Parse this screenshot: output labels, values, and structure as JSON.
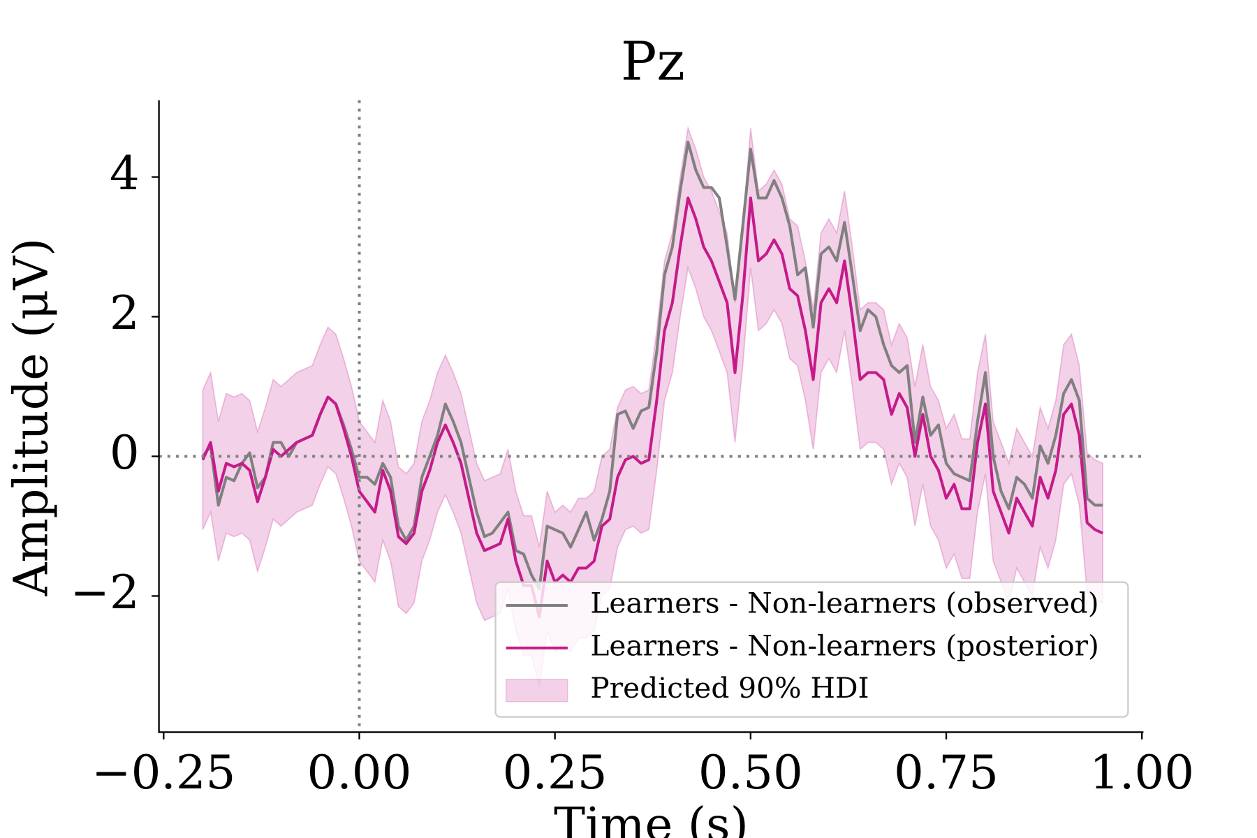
{
  "chart_data": {
    "type": "line",
    "title": "Pz",
    "x_label": "Time (s)",
    "y_label": "Amplitude (μV)",
    "x": [
      -0.2,
      -0.19,
      -0.18,
      -0.17,
      -0.16,
      -0.15,
      -0.14,
      -0.13,
      -0.12,
      -0.11,
      -0.1,
      -0.09,
      -0.08,
      -0.07,
      -0.06,
      -0.05,
      -0.04,
      -0.03,
      -0.02,
      -0.01,
      0,
      0.01,
      0.02,
      0.03,
      0.04,
      0.05,
      0.06,
      0.07,
      0.08,
      0.09,
      0.1,
      0.11,
      0.12,
      0.13,
      0.14,
      0.15,
      0.16,
      0.17,
      0.18,
      0.19,
      0.2,
      0.21,
      0.22,
      0.23,
      0.24,
      0.25,
      0.26,
      0.27,
      0.28,
      0.29,
      0.3,
      0.31,
      0.32,
      0.33,
      0.34,
      0.35,
      0.36,
      0.37,
      0.38,
      0.39,
      0.4,
      0.41,
      0.42,
      0.43,
      0.44,
      0.45,
      0.46,
      0.47,
      0.48,
      0.49,
      0.5,
      0.51,
      0.52,
      0.53,
      0.54,
      0.55,
      0.56,
      0.57,
      0.58,
      0.59,
      0.6,
      0.61,
      0.62,
      0.63,
      0.64,
      0.65,
      0.66,
      0.67,
      0.68,
      0.69,
      0.7,
      0.71,
      0.72,
      0.73,
      0.74,
      0.75,
      0.76,
      0.77,
      0.78,
      0.79,
      0.8,
      0.81,
      0.82,
      0.83,
      0.84,
      0.85,
      0.86,
      0.87,
      0.88,
      0.89,
      0.9,
      0.91,
      0.92,
      0.93,
      0.94,
      0.95
    ],
    "series": [
      {
        "name": "Learners - Non-learners (observed)",
        "color": "#808080",
        "values": [
          0.0,
          0.15,
          -0.7,
          -0.3,
          -0.35,
          -0.1,
          0.05,
          -0.45,
          -0.3,
          0.2,
          0.2,
          0.0,
          0.2,
          0.25,
          0.3,
          0.6,
          0.85,
          0.75,
          0.45,
          0.1,
          -0.3,
          -0.3,
          -0.4,
          -0.1,
          -0.3,
          -1.0,
          -1.2,
          -1.0,
          -0.3,
          0.0,
          0.3,
          0.75,
          0.5,
          0.2,
          -0.3,
          -0.8,
          -1.15,
          -1.1,
          -0.95,
          -0.8,
          -1.35,
          -1.4,
          -1.7,
          -1.9,
          -1.0,
          -1.05,
          -1.1,
          -1.3,
          -1.05,
          -0.8,
          -1.2,
          -0.9,
          -0.5,
          0.6,
          0.65,
          0.4,
          0.65,
          0.7,
          1.5,
          2.6,
          3.0,
          3.8,
          4.5,
          4.1,
          3.85,
          3.85,
          3.7,
          3.0,
          2.25,
          3.3,
          4.4,
          3.7,
          3.7,
          3.95,
          3.7,
          3.3,
          2.6,
          2.7,
          1.85,
          2.9,
          3.0,
          2.8,
          3.35,
          2.6,
          1.8,
          2.1,
          2.0,
          1.6,
          1.3,
          1.2,
          1.3,
          0.2,
          0.85,
          0.3,
          0.45,
          -0.1,
          -0.25,
          -0.3,
          -0.35,
          0.5,
          1.2,
          0.0,
          -0.5,
          -0.75,
          -0.3,
          -0.4,
          -0.6,
          0.15,
          -0.1,
          0.3,
          0.9,
          1.1,
          0.8,
          -0.6,
          -0.7,
          -0.7
        ]
      },
      {
        "name": "Learners - Non-learners (posterior)",
        "color": "#c51b8a",
        "values": [
          -0.05,
          0.2,
          -0.5,
          -0.1,
          -0.15,
          -0.1,
          -0.2,
          -0.65,
          -0.3,
          0.1,
          0.0,
          0.1,
          0.2,
          0.25,
          0.3,
          0.6,
          0.85,
          0.75,
          0.4,
          0.0,
          -0.5,
          -0.65,
          -0.8,
          -0.2,
          -0.5,
          -1.15,
          -1.25,
          -1.1,
          -0.5,
          -0.2,
          0.2,
          0.45,
          0.2,
          -0.1,
          -0.6,
          -1.1,
          -1.35,
          -1.3,
          -1.25,
          -0.9,
          -1.5,
          -1.85,
          -1.85,
          -2.3,
          -1.5,
          -1.8,
          -1.7,
          -1.8,
          -1.6,
          -1.6,
          -1.5,
          -1.0,
          -0.9,
          -0.3,
          -0.05,
          0.0,
          -0.1,
          -0.05,
          0.8,
          1.8,
          2.2,
          3.0,
          3.7,
          3.4,
          3.0,
          2.8,
          2.5,
          2.2,
          1.2,
          2.3,
          3.7,
          2.8,
          2.9,
          3.1,
          2.9,
          2.4,
          2.3,
          1.8,
          1.1,
          2.2,
          2.4,
          2.2,
          2.8,
          2.0,
          1.1,
          1.2,
          1.2,
          1.1,
          0.6,
          0.9,
          0.7,
          0.0,
          0.6,
          0.0,
          -0.2,
          -0.6,
          -0.4,
          -0.75,
          -0.75,
          0.2,
          0.75,
          -0.5,
          -0.8,
          -1.1,
          -0.6,
          -0.8,
          -1.0,
          -0.3,
          -0.6,
          -0.2,
          0.6,
          0.75,
          0.3,
          -0.95,
          -1.05,
          -1.1
        ]
      }
    ],
    "band": {
      "name": "Predicted 90% HDI",
      "color": "#c51b8a",
      "upper": [
        0.95,
        1.2,
        0.5,
        0.9,
        0.85,
        0.9,
        0.8,
        0.35,
        0.7,
        1.1,
        1.0,
        1.1,
        1.2,
        1.25,
        1.3,
        1.6,
        1.85,
        1.75,
        1.4,
        1.0,
        0.5,
        0.35,
        0.2,
        0.8,
        0.5,
        -0.15,
        -0.25,
        -0.1,
        0.5,
        0.8,
        1.2,
        1.45,
        1.2,
        0.9,
        0.4,
        -0.1,
        -0.35,
        -0.3,
        -0.25,
        0.1,
        -0.5,
        -0.85,
        -0.85,
        -1.3,
        -0.5,
        -0.8,
        -0.7,
        -0.8,
        -0.6,
        -0.6,
        -0.5,
        0.0,
        0.1,
        0.7,
        0.95,
        1.0,
        0.9,
        0.95,
        1.8,
        2.8,
        3.2,
        4.0,
        4.7,
        4.4,
        4.0,
        3.8,
        3.5,
        3.2,
        2.2,
        3.3,
        4.7,
        3.8,
        3.9,
        4.1,
        3.9,
        3.4,
        3.3,
        2.8,
        2.1,
        3.2,
        3.4,
        3.2,
        3.8,
        3.0,
        2.1,
        2.2,
        2.2,
        2.1,
        1.6,
        1.9,
        1.7,
        1.0,
        1.6,
        1.0,
        0.8,
        0.4,
        0.6,
        0.25,
        0.25,
        1.2,
        1.75,
        0.5,
        0.2,
        -0.1,
        0.4,
        0.2,
        0.0,
        0.7,
        0.4,
        0.8,
        1.6,
        1.75,
        1.3,
        0.05,
        -0.05,
        -0.1
      ],
      "lower": [
        -1.05,
        -0.8,
        -1.5,
        -1.1,
        -1.15,
        -1.1,
        -1.2,
        -1.65,
        -1.3,
        -0.9,
        -1.0,
        -0.9,
        -0.8,
        -0.75,
        -0.7,
        -0.4,
        -0.15,
        -0.25,
        -0.6,
        -1.0,
        -1.5,
        -1.65,
        -1.8,
        -1.2,
        -1.5,
        -2.15,
        -2.25,
        -2.1,
        -1.5,
        -1.2,
        -0.8,
        -0.55,
        -0.8,
        -1.1,
        -1.6,
        -2.1,
        -2.35,
        -2.3,
        -2.25,
        -1.9,
        -2.5,
        -2.85,
        -2.85,
        -3.3,
        -2.5,
        -2.8,
        -2.7,
        -2.8,
        -2.6,
        -2.6,
        -2.5,
        -2.0,
        -1.9,
        -1.3,
        -1.05,
        -1.0,
        -1.1,
        -1.05,
        -0.2,
        0.8,
        1.2,
        2.0,
        2.7,
        2.4,
        2.0,
        1.8,
        1.5,
        1.2,
        0.2,
        1.3,
        2.7,
        1.8,
        1.9,
        2.1,
        1.9,
        1.4,
        1.3,
        0.8,
        0.1,
        1.2,
        1.4,
        1.2,
        1.8,
        1.0,
        0.1,
        0.2,
        0.2,
        0.1,
        -0.4,
        -0.1,
        -0.3,
        -1.0,
        -0.4,
        -1.0,
        -1.2,
        -1.6,
        -1.4,
        -1.75,
        -1.75,
        -0.8,
        -0.25,
        -1.5,
        -1.8,
        -2.1,
        -1.6,
        -1.8,
        -2.0,
        -1.3,
        -1.6,
        -1.2,
        -0.4,
        -0.25,
        -0.7,
        -1.95,
        -2.05,
        -2.1
      ]
    },
    "reference_lines": {
      "x": 0,
      "y": 0,
      "color": "#808080"
    },
    "xlim": [
      -0.256,
      1.002
    ],
    "ylim": [
      -3.95,
      5.1
    ],
    "xticks": [
      {
        "value": -0.25,
        "label": "−0.25"
      },
      {
        "value": 0,
        "label": "0.00"
      },
      {
        "value": 0.25,
        "label": "0.25"
      },
      {
        "value": 0.5,
        "label": "0.50"
      },
      {
        "value": 0.75,
        "label": "0.75"
      },
      {
        "value": 1,
        "label": "1.00"
      }
    ],
    "yticks": [
      {
        "value": -2,
        "label": "−2"
      },
      0,
      2,
      4
    ],
    "grid": false,
    "legend": "lower right"
  }
}
